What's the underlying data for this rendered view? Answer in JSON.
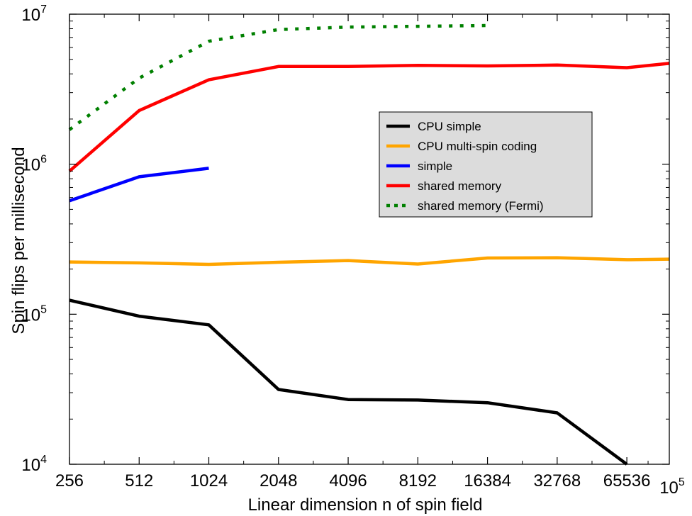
{
  "chart_data": {
    "type": "line",
    "xscale": "log2",
    "yscale": "log10",
    "xlim": [
      256,
      100000
    ],
    "ylim": [
      10000,
      10000000
    ],
    "xlabel": "Linear dimension n of spin field",
    "ylabel": "Spin flips per millisecond",
    "x_ticks": [
      256,
      512,
      1024,
      2048,
      4096,
      8192,
      16384,
      32768,
      65536
    ],
    "x_tick_labels": [
      "256",
      "512",
      "1024",
      "2048",
      "4096",
      "8192",
      "16384",
      "32768",
      "65536"
    ],
    "x_end_label": {
      "value": 100000,
      "base": "10",
      "exp": "5"
    },
    "y_ticks": [
      {
        "value": 10000,
        "base": "10",
        "exp": "4"
      },
      {
        "value": 100000,
        "base": "10",
        "exp": "5"
      },
      {
        "value": 1000000,
        "base": "10",
        "exp": "6"
      },
      {
        "value": 10000000,
        "base": "10",
        "exp": "7"
      }
    ],
    "grid": false,
    "legend_position": "center-right",
    "series": [
      {
        "name": "CPU simple",
        "color": "#000000",
        "style": "solid",
        "x": [
          256,
          512,
          1024,
          2048,
          4096,
          8192,
          16384,
          32768,
          65536
        ],
        "y": [
          124000,
          97000,
          85000,
          31500,
          27000,
          26800,
          25700,
          22000,
          10000
        ]
      },
      {
        "name": "CPU multi-spin coding",
        "color": "#ffa500",
        "style": "solid",
        "x": [
          256,
          512,
          1024,
          2048,
          4096,
          8192,
          16384,
          32768,
          65536,
          100000
        ],
        "y": [
          223000,
          220000,
          215000,
          222000,
          228000,
          216000,
          237000,
          238000,
          231000,
          233000
        ]
      },
      {
        "name": "simple",
        "color": "#0000ff",
        "style": "solid",
        "x": [
          256,
          512,
          1024
        ],
        "y": [
          570000,
          825000,
          940000
        ]
      },
      {
        "name": "shared memory",
        "color": "#ff0000",
        "style": "solid",
        "x": [
          256,
          512,
          1024,
          2048,
          4096,
          8192,
          16384,
          32768,
          65536,
          100000
        ],
        "y": [
          900000,
          2280000,
          3650000,
          4480000,
          4480000,
          4560000,
          4520000,
          4580000,
          4400000,
          4700000
        ]
      },
      {
        "name": "shared memory (Fermi)",
        "color": "#008000",
        "style": "dotted",
        "x": [
          256,
          512,
          1024,
          2048,
          4096,
          8192,
          16384
        ],
        "y": [
          1700000,
          3750000,
          6600000,
          7900000,
          8200000,
          8300000,
          8400000
        ]
      }
    ]
  }
}
